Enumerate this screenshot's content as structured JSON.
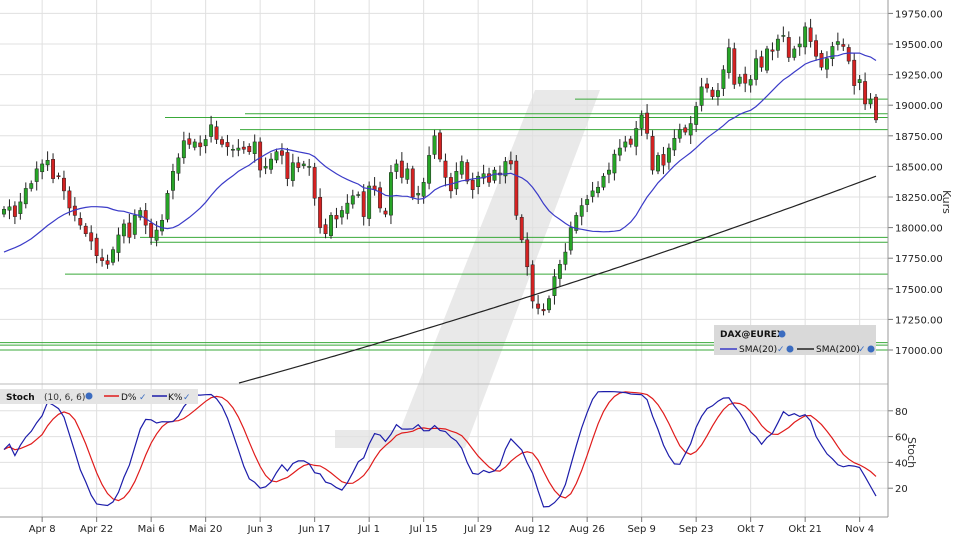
{
  "chart_data": [
    {
      "type": "candlestick",
      "instrument": "DAX@EUREX",
      "yaxis_label": "Kurs",
      "ylim": [
        16900,
        19800
      ],
      "y_ticks": [
        17000,
        17250,
        17500,
        17750,
        18000,
        18250,
        18500,
        18750,
        19000,
        19250,
        19500,
        19750
      ],
      "y_tick_labels": [
        "17000.00",
        "17250.00",
        "17500.00",
        "17750.00",
        "18000.00",
        "18250.00",
        "18500.00",
        "18750.00",
        "19000.00",
        "19250.00",
        "19500.00",
        "19750.00"
      ],
      "x_tick_labels": [
        "Apr 8",
        "Apr 22",
        "Mai 6",
        "Mai 20",
        "Jun 3",
        "Jun 17",
        "Jul 1",
        "Jul 15",
        "Jul 29",
        "Aug 12",
        "Aug 26",
        "Sep 9",
        "Sep 23",
        "Okt 7",
        "Okt 21",
        "Nov 4"
      ],
      "x_tick_index": [
        7,
        17,
        27,
        37,
        47,
        57,
        67,
        77,
        87,
        97,
        107,
        117,
        127,
        137,
        147,
        157
      ],
      "close": [
        18150,
        18170,
        18090,
        18210,
        18320,
        18360,
        18480,
        18520,
        18550,
        18400,
        18420,
        18300,
        18160,
        18100,
        18020,
        17950,
        17890,
        17770,
        17730,
        17700,
        17820,
        17940,
        18030,
        17920,
        18100,
        18140,
        18020,
        17920,
        17980,
        18060,
        18280,
        18460,
        18570,
        18710,
        18680,
        18700,
        18660,
        18720,
        18840,
        18720,
        18680,
        18660,
        18640,
        18650,
        18640,
        18620,
        18700,
        18470,
        18500,
        18560,
        18620,
        18590,
        18400,
        18530,
        18490,
        18520,
        18500,
        18240,
        18000,
        17950,
        18100,
        18070,
        18140,
        18200,
        18260,
        18270,
        18090,
        18340,
        18310,
        18160,
        18110,
        18450,
        18520,
        18410,
        18480,
        18250,
        18280,
        18370,
        18590,
        18750,
        18560,
        18410,
        18300,
        18460,
        18540,
        18380,
        18310,
        18420,
        18440,
        18370,
        18470,
        18430,
        18540,
        18520,
        18100,
        17900,
        17680,
        17400,
        17340,
        17320,
        17420,
        17600,
        17700,
        17800,
        18000,
        18100,
        18180,
        18230,
        18300,
        18330,
        18420,
        18470,
        18600,
        18650,
        18700,
        18680,
        18810,
        18920,
        18770,
        18470,
        18590,
        18510,
        18650,
        18730,
        18800,
        18780,
        18850,
        18990,
        19150,
        19140,
        19070,
        19120,
        19290,
        19470,
        19170,
        19230,
        19180,
        19210,
        19380,
        19310,
        19460,
        19440,
        19540,
        19570,
        19390,
        19460,
        19500,
        19640,
        19520,
        19400,
        19310,
        19380,
        19480,
        19520,
        19480,
        19360,
        19160,
        19210,
        19010,
        19050,
        18880
      ],
      "sma_20_endpoints": {
        "start": 17800,
        "end": 19330
      },
      "sma_200_endpoints": {
        "start": 16730,
        "end": 18420
      },
      "horizontal_levels": [
        17000,
        17060,
        17040,
        17620,
        17880,
        17920,
        18800,
        18900,
        18930,
        19050
      ],
      "legend": {
        "title": "DAX@EUREX",
        "items": [
          "SMA(20)",
          "SMA(200)"
        ]
      }
    },
    {
      "type": "line",
      "indicator": "Stoch",
      "params": "(10, 6, 6)",
      "yaxis_label": "Stoch",
      "ylim": [
        0,
        100
      ],
      "y_ticks": [
        20,
        40,
        60,
        80
      ],
      "series": [
        {
          "name": "K%",
          "color": "#1d1daa"
        },
        {
          "name": "D%",
          "color": "#e01b1b"
        }
      ]
    }
  ],
  "colors": {
    "up": "#27a527",
    "down": "#d42222",
    "sma20": "#3b3bc8",
    "sma200": "#222222",
    "level": "#39a939",
    "grid": "#e0e0e0",
    "watermark": "#e6e6e6"
  }
}
